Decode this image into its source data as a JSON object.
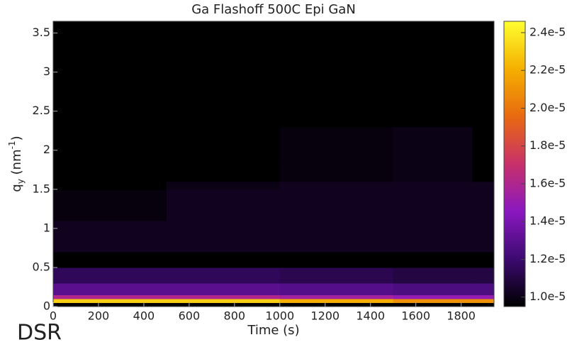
{
  "chart_data": {
    "type": "heatmap",
    "title": "Ga Flashoff 500C Epi GaN",
    "x_label": "Time (s)",
    "y_label": {
      "base": "q",
      "sub": "y",
      "mid": " (nm",
      "sup": "-1",
      "end": ")"
    },
    "annotation": "DSR",
    "xlim": [
      0,
      1945
    ],
    "xticks": [
      0,
      200,
      400,
      600,
      800,
      1000,
      1200,
      1400,
      1600,
      1800
    ],
    "ylim": [
      0,
      3.65
    ],
    "yticks": [
      0,
      0.5,
      1,
      1.5,
      2,
      2.5,
      3,
      3.5
    ],
    "x_edges": [
      0,
      500,
      1000,
      1500,
      1850,
      1945
    ],
    "y_edges": [
      0,
      0.05,
      0.1,
      0.15,
      0.3,
      0.5,
      0.7,
      1.0,
      1.1,
      1.5,
      1.6,
      1.85,
      2.3,
      3.65
    ],
    "z": [
      [
        9.5e-06,
        9.5e-06,
        9.5e-06,
        9.5e-06,
        9.5e-06
      ],
      [
        2.3e-05,
        2.3e-05,
        2.2e-05,
        2.1e-05,
        2.1e-05
      ],
      [
        1.6e-05,
        1.6e-05,
        1.55e-05,
        1.5e-05,
        1.5e-05
      ],
      [
        1.3e-05,
        1.3e-05,
        1.28e-05,
        1.25e-05,
        1.25e-05
      ],
      [
        1.15e-05,
        1.15e-05,
        1.13e-05,
        1.1e-05,
        1.1e-05
      ],
      [
        9.5e-06,
        9.5e-06,
        9.5e-06,
        9.5e-06,
        9.5e-06
      ],
      [
        1.02e-05,
        1.02e-05,
        1.02e-05,
        1.02e-05,
        1.02e-05
      ],
      [
        1.02e-05,
        1.02e-05,
        1.02e-05,
        1.02e-05,
        1.02e-05
      ],
      [
        9.8e-06,
        1.02e-05,
        1.02e-05,
        1.02e-05,
        1.02e-05
      ],
      [
        9.5e-06,
        1e-05,
        1.02e-05,
        1.02e-05,
        1.02e-05
      ],
      [
        9.5e-06,
        9.5e-06,
        9.8e-06,
        1e-05,
        9.5e-06
      ],
      [
        9.5e-06,
        9.5e-06,
        9.8e-06,
        1e-05,
        9.5e-06
      ],
      [
        9.5e-06,
        9.5e-06,
        9.5e-06,
        9.5e-06,
        9.5e-06
      ]
    ],
    "clim": [
      9.5e-06,
      2.46e-05
    ],
    "colormap": [
      "#000000",
      "#3c0a70",
      "#8a18c0",
      "#c8306a",
      "#e86a10",
      "#f5b000",
      "#ffff30"
    ],
    "cticks": [
      {
        "value": 1e-05,
        "label": "1.0e-5"
      },
      {
        "value": 1.2e-05,
        "label": "1.2e-5"
      },
      {
        "value": 1.4e-05,
        "label": "1.4e-5"
      },
      {
        "value": 1.6e-05,
        "label": "1.6e-5"
      },
      {
        "value": 1.8e-05,
        "label": "1.8e-5"
      },
      {
        "value": 2e-05,
        "label": "2.0e-5"
      },
      {
        "value": 2.2e-05,
        "label": "2.2e-5"
      },
      {
        "value": 2.4e-05,
        "label": "2.4e-5"
      }
    ]
  }
}
